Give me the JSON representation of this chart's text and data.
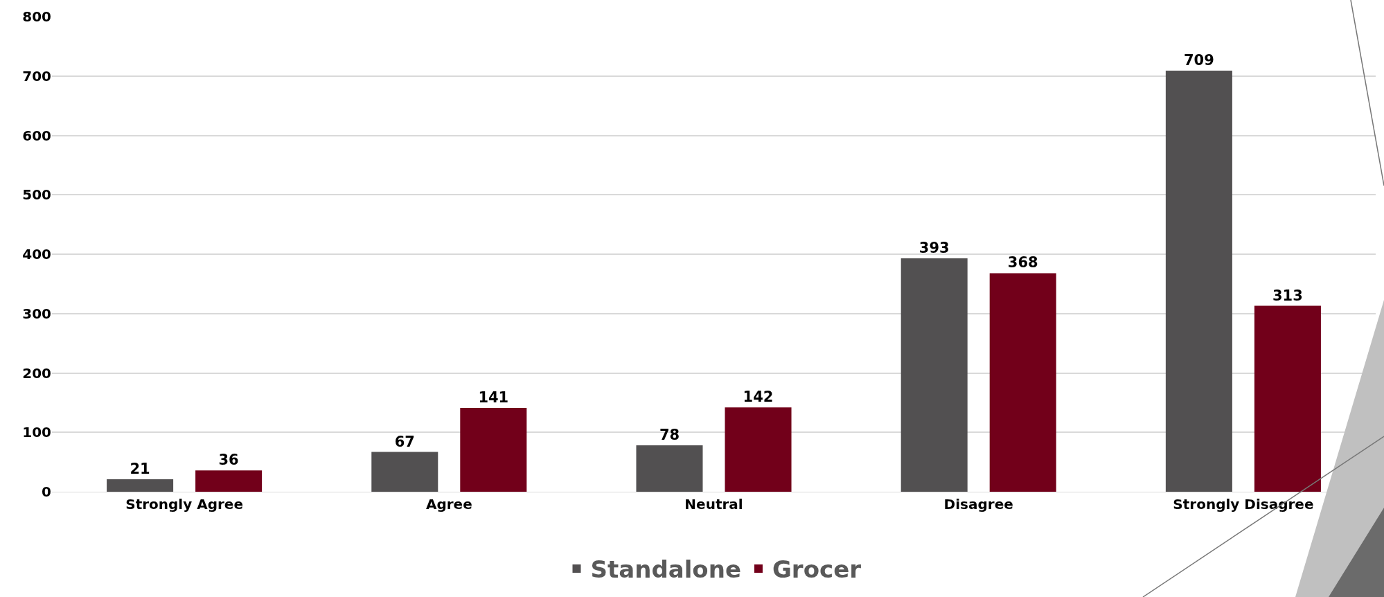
{
  "chart_data": {
    "type": "bar",
    "categories": [
      "Strongly Agree",
      "Agree",
      "Neutral",
      "Disagree",
      "Strongly Disagree"
    ],
    "series": [
      {
        "name": "Standalone",
        "color": "#525051",
        "values": [
          21,
          67,
          78,
          393,
          709
        ]
      },
      {
        "name": "Grocer",
        "color": "#72001a",
        "values": [
          36,
          141,
          142,
          368,
          313
        ]
      }
    ],
    "ylim": [
      0,
      800
    ],
    "yticks": [
      0,
      100,
      200,
      300,
      400,
      500,
      600,
      700,
      800
    ],
    "grid": "y",
    "legend": "bottom",
    "data_labels": true
  }
}
